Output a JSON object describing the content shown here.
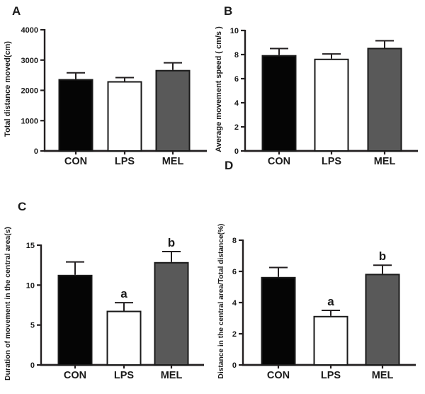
{
  "figure": {
    "background": "#ffffff",
    "axis_color": "#231f20",
    "text_color": "#1a1a1a",
    "bar_border_color": "#1a1a1a",
    "bar_colors": {
      "CON": "#050505",
      "LPS": "#ffffff",
      "MEL": "#595959"
    },
    "panel_letters": [
      "A",
      "B",
      "C",
      "D"
    ]
  },
  "chart_data": [
    {
      "panel": "A",
      "type": "bar",
      "title": "",
      "xlabel": "",
      "ylabel": "Total distance moved(cm)",
      "ylim": [
        0,
        4000
      ],
      "yticks": [
        0,
        1000,
        2000,
        3000,
        4000
      ],
      "grid": false,
      "legend": "none",
      "categories": [
        "CON",
        "LPS",
        "MEL"
      ],
      "values": [
        2350,
        2280,
        2650
      ],
      "errors_upper": [
        230,
        140,
        260
      ],
      "sig_labels": [
        "",
        "",
        ""
      ]
    },
    {
      "panel": "B",
      "type": "bar",
      "title": "",
      "xlabel": "",
      "ylabel": "Average movement speed ( cm/s )",
      "ylim": [
        0,
        10
      ],
      "yticks": [
        0,
        2,
        4,
        6,
        8,
        10
      ],
      "grid": false,
      "legend": "none",
      "categories": [
        "CON",
        "LPS",
        "MEL"
      ],
      "values": [
        7.9,
        7.6,
        8.5
      ],
      "errors_upper": [
        0.6,
        0.45,
        0.65
      ],
      "sig_labels": [
        "",
        "",
        ""
      ]
    },
    {
      "panel": "C",
      "type": "bar",
      "title": "",
      "xlabel": "",
      "ylabel": "Duration of movement in the central area(s)",
      "ylim": [
        0,
        15
      ],
      "yticks": [
        0,
        5,
        10,
        15
      ],
      "grid": false,
      "legend": "none",
      "categories": [
        "CON",
        "LPS",
        "MEL"
      ],
      "values": [
        11.2,
        6.7,
        12.8
      ],
      "errors_upper": [
        1.7,
        1.1,
        1.4
      ],
      "sig_labels": [
        "",
        "a",
        "b"
      ]
    },
    {
      "panel": "D",
      "type": "bar",
      "title": "",
      "xlabel": "",
      "ylabel": "Distance in the central area/Total distance(%)",
      "ylim": [
        0,
        8
      ],
      "yticks": [
        0,
        2,
        4,
        6,
        8
      ],
      "grid": false,
      "legend": "none",
      "categories": [
        "CON",
        "LPS",
        "MEL"
      ],
      "values": [
        5.6,
        3.1,
        5.8
      ],
      "errors_upper": [
        0.65,
        0.4,
        0.6
      ],
      "sig_labels": [
        "",
        "a",
        "b"
      ]
    }
  ]
}
